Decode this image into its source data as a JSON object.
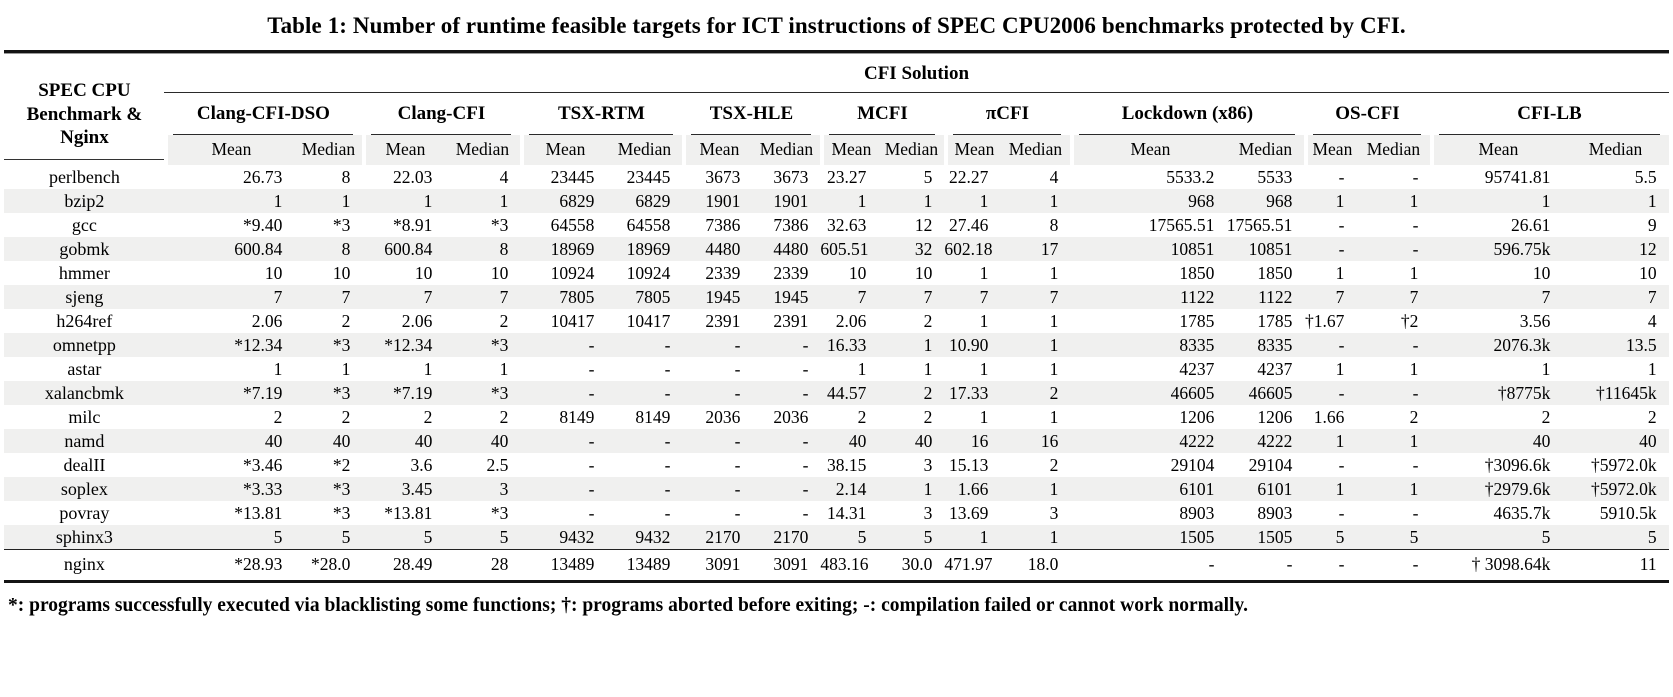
{
  "title": "Table 1: Number of runtime feasible targets for ICT instructions of SPEC CPU2006 benchmarks protected by CFI.",
  "table": {
    "stub": {
      "line1": "SPEC CPU",
      "line2": "Benchmark & Nginx"
    },
    "solution_label": "CFI Solution",
    "groups": [
      "Clang-CFI-DSO",
      "Clang-CFI",
      "TSX-RTM",
      "TSX-HLE",
      "MCFI",
      "πCFI",
      "Lockdown (x86)",
      "OS-CFI",
      "CFI-LB"
    ],
    "subheaders": [
      "Mean",
      "Median"
    ],
    "rows": [
      {
        "name": "perlbench",
        "values": [
          "26.73",
          "8",
          "22.03",
          "4",
          "23445",
          "23445",
          "3673",
          "3673",
          "23.27",
          "5",
          "22.27",
          "4",
          "5533.2",
          "5533",
          "-",
          "-",
          "95741.81",
          "5.5"
        ]
      },
      {
        "name": "bzip2",
        "values": [
          "1",
          "1",
          "1",
          "1",
          "6829",
          "6829",
          "1901",
          "1901",
          "1",
          "1",
          "1",
          "1",
          "968",
          "968",
          "1",
          "1",
          "1",
          "1"
        ]
      },
      {
        "name": "gcc",
        "values": [
          "*9.40",
          "*3",
          "*8.91",
          "*3",
          "64558",
          "64558",
          "7386",
          "7386",
          "32.63",
          "12",
          "27.46",
          "8",
          "17565.51",
          "17565.51",
          "-",
          "-",
          "26.61",
          "9"
        ]
      },
      {
        "name": "gobmk",
        "values": [
          "600.84",
          "8",
          "600.84",
          "8",
          "18969",
          "18969",
          "4480",
          "4480",
          "605.51",
          "32",
          "602.18",
          "17",
          "10851",
          "10851",
          "-",
          "-",
          "596.75k",
          "12"
        ]
      },
      {
        "name": "hmmer",
        "values": [
          "10",
          "10",
          "10",
          "10",
          "10924",
          "10924",
          "2339",
          "2339",
          "10",
          "10",
          "1",
          "1",
          "1850",
          "1850",
          "1",
          "1",
          "10",
          "10"
        ]
      },
      {
        "name": "sjeng",
        "values": [
          "7",
          "7",
          "7",
          "7",
          "7805",
          "7805",
          "1945",
          "1945",
          "7",
          "7",
          "7",
          "7",
          "1122",
          "1122",
          "7",
          "7",
          "7",
          "7"
        ]
      },
      {
        "name": "h264ref",
        "values": [
          "2.06",
          "2",
          "2.06",
          "2",
          "10417",
          "10417",
          "2391",
          "2391",
          "2.06",
          "2",
          "1",
          "1",
          "1785",
          "1785",
          "†1.67",
          "†2",
          "3.56",
          "4"
        ]
      },
      {
        "name": "omnetpp",
        "values": [
          "*12.34",
          "*3",
          "*12.34",
          "*3",
          "-",
          "-",
          "-",
          "-",
          "16.33",
          "1",
          "10.90",
          "1",
          "8335",
          "8335",
          "-",
          "-",
          "2076.3k",
          "13.5"
        ]
      },
      {
        "name": "astar",
        "values": [
          "1",
          "1",
          "1",
          "1",
          "-",
          "-",
          "-",
          "-",
          "1",
          "1",
          "1",
          "1",
          "4237",
          "4237",
          "1",
          "1",
          "1",
          "1"
        ]
      },
      {
        "name": "xalancbmk",
        "values": [
          "*7.19",
          "*3",
          "*7.19",
          "*3",
          "-",
          "-",
          "-",
          "-",
          "44.57",
          "2",
          "17.33",
          "2",
          "46605",
          "46605",
          "-",
          "-",
          "†8775k",
          "†11645k"
        ]
      },
      {
        "name": "milc",
        "values": [
          "2",
          "2",
          "2",
          "2",
          "8149",
          "8149",
          "2036",
          "2036",
          "2",
          "2",
          "1",
          "1",
          "1206",
          "1206",
          "1.66",
          "2",
          "2",
          "2"
        ]
      },
      {
        "name": "namd",
        "values": [
          "40",
          "40",
          "40",
          "40",
          "-",
          "-",
          "-",
          "-",
          "40",
          "40",
          "16",
          "16",
          "4222",
          "4222",
          "1",
          "1",
          "40",
          "40"
        ]
      },
      {
        "name": "dealII",
        "values": [
          "*3.46",
          "*2",
          "3.6",
          "2.5",
          "-",
          "-",
          "-",
          "-",
          "38.15",
          "3",
          "15.13",
          "2",
          "29104",
          "29104",
          "-",
          "-",
          "†3096.6k",
          "†5972.0k"
        ]
      },
      {
        "name": "soplex",
        "values": [
          "*3.33",
          "*3",
          "3.45",
          "3",
          "-",
          "-",
          "-",
          "-",
          "2.14",
          "1",
          "1.66",
          "1",
          "6101",
          "6101",
          "1",
          "1",
          "†2979.6k",
          "†5972.0k"
        ]
      },
      {
        "name": "povray",
        "values": [
          "*13.81",
          "*3",
          "*13.81",
          "*3",
          "-",
          "-",
          "-",
          "-",
          "14.31",
          "3",
          "13.69",
          "3",
          "8903",
          "8903",
          "-",
          "-",
          "4635.7k",
          "5910.5k"
        ]
      },
      {
        "name": "sphinx3",
        "values": [
          "5",
          "5",
          "5",
          "5",
          "9432",
          "9432",
          "2170",
          "2170",
          "5",
          "5",
          "1",
          "1",
          "1505",
          "1505",
          "5",
          "5",
          "5",
          "5"
        ]
      }
    ],
    "nginx_row": {
      "name": "nginx",
      "values": [
        "*28.93",
        "*28.0",
        "28.49",
        "28",
        "13489",
        "13489",
        "3091",
        "3091",
        "483.16",
        "30.0",
        "471.97",
        "18.0",
        "-",
        "-",
        "-",
        "-",
        "† 3098.64k",
        "11"
      ]
    }
  },
  "footnote": "*: programs successfully executed via blacklisting some functions; †: programs aborted before exiting; -: compilation failed or cannot work normally."
}
